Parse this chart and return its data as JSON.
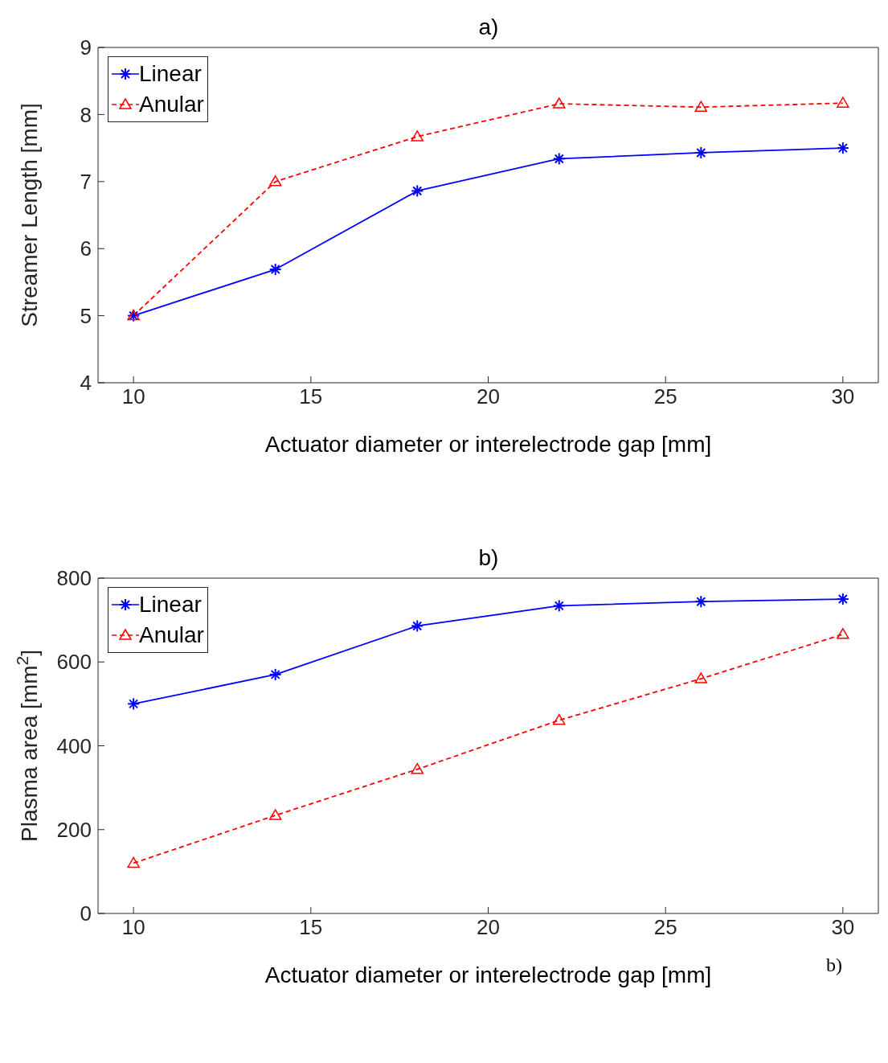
{
  "chart_data": [
    {
      "type": "line",
      "title": "a)",
      "xlabel": "Actuator diameter or interelectrode gap [mm]",
      "ylabel": "Streamer Length [mm]",
      "x": [
        10,
        14,
        18,
        22,
        26,
        30
      ],
      "xlim": [
        9,
        31
      ],
      "xticks": [
        10,
        15,
        20,
        25,
        30
      ],
      "ylim": [
        4,
        9
      ],
      "yticks": [
        4,
        5,
        6,
        7,
        8,
        9
      ],
      "grid": false,
      "legend": "top left",
      "series": [
        {
          "name": "Linear",
          "color": "#0000ff",
          "marker": "cross",
          "line_style": "solid",
          "values": [
            5.0,
            5.69,
            6.86,
            7.34,
            7.43,
            7.5
          ]
        },
        {
          "name": "Anular",
          "color": "#ff0000",
          "marker": "triangle",
          "line_style": "dashed",
          "values": [
            5.0,
            7.0,
            7.67,
            8.16,
            8.11,
            8.17
          ]
        }
      ]
    },
    {
      "type": "line",
      "title": "b)",
      "xlabel": "Actuator diameter or interelectrode gap [mm]",
      "ylabel": "Plasma area [mm$^{2}$]",
      "x": [
        10,
        14,
        18,
        22,
        26,
        30
      ],
      "xlim": [
        9,
        31
      ],
      "xticks": [
        10,
        15,
        20,
        25,
        30
      ],
      "ylim": [
        0,
        800
      ],
      "yticks": [
        0,
        200,
        400,
        600,
        800
      ],
      "grid": false,
      "legend": "top left",
      "annotations": [
        "b)"
      ],
      "series": [
        {
          "name": "Linear",
          "color": "#0000ff",
          "marker": "cross",
          "line_style": "solid",
          "values": [
            500,
            570,
            686,
            734,
            744,
            750
          ]
        },
        {
          "name": "Anular",
          "color": "#ff0000",
          "marker": "triangle",
          "line_style": "dashed",
          "values": [
            120,
            234,
            344,
            461,
            560,
            666
          ]
        }
      ]
    }
  ]
}
